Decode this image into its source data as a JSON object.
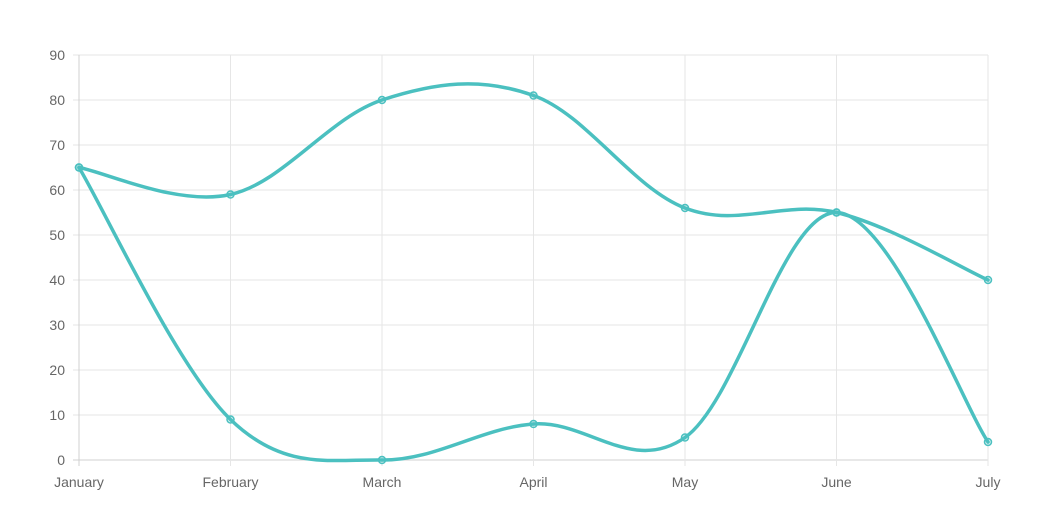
{
  "chart_data": {
    "type": "line",
    "title": "",
    "xlabel": "",
    "ylabel": "",
    "categories": [
      "January",
      "February",
      "March",
      "April",
      "May",
      "June",
      "July"
    ],
    "ylim": [
      0,
      90
    ],
    "yticks": [
      0,
      10,
      20,
      30,
      40,
      50,
      60,
      70,
      80,
      90
    ],
    "grid": true,
    "legend": "none",
    "series": [
      {
        "values": [
          65,
          59,
          80,
          81,
          56,
          55,
          40
        ],
        "color": "#4bc0c0"
      },
      {
        "values": [
          65,
          9,
          0,
          8,
          5,
          55,
          4
        ],
        "color": "#4bc0c0"
      }
    ]
  }
}
